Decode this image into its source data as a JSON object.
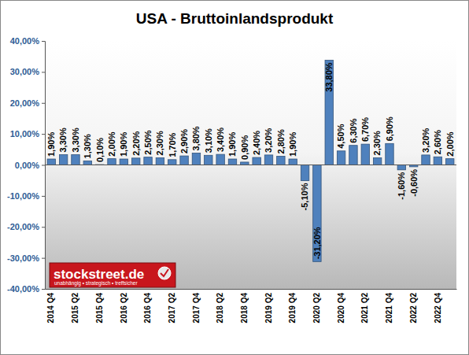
{
  "chart_data": {
    "type": "bar",
    "title": "USA - Bruttoinlandsprodukt",
    "categories": [
      "2014 Q4",
      null,
      "2015 Q2",
      null,
      "2015 Q4",
      null,
      "2016 Q2",
      null,
      "2016 Q4",
      null,
      "2017 Q2",
      null,
      "2017 Q4",
      null,
      "2018 Q2",
      null,
      "2018 Q4",
      null,
      "2019 Q2",
      null,
      "2019 Q4",
      null,
      "2020 Q2",
      null,
      "2020 Q4",
      null,
      "2021 Q2",
      null,
      "2021 Q4",
      null,
      "2022 Q2",
      null,
      "2022 Q4",
      null
    ],
    "values": [
      1.9,
      3.3,
      3.3,
      1.3,
      0.1,
      2.0,
      1.9,
      2.2,
      2.5,
      2.3,
      1.7,
      2.9,
      3.8,
      3.1,
      3.4,
      1.9,
      0.9,
      2.4,
      3.2,
      2.8,
      1.9,
      -5.1,
      -31.2,
      33.8,
      4.5,
      6.3,
      6.7,
      2.3,
      6.9,
      -1.6,
      -0.6,
      3.2,
      2.6,
      2.0
    ],
    "value_labels": [
      "1,90%",
      "3,30%",
      "3,30%",
      "1,30%",
      "0,10%",
      "2,00%",
      "1,90%",
      "2,20%",
      "2,50%",
      "2,30%",
      "1,70%",
      "2,90%",
      "3,80%",
      "3,10%",
      "3,40%",
      "1,90%",
      "0,90%",
      "2,40%",
      "3,20%",
      "2,80%",
      "1,90%",
      "-5,10%",
      "-31,20%",
      "33,80%",
      "4,50%",
      "6,30%",
      "6,70%",
      "2,30%",
      "6,90%",
      "-1,60%",
      "-0,60%",
      "3,20%",
      "2,60%",
      "2,00%"
    ],
    "color": "#4f81bd",
    "ylim": [
      -40,
      40
    ],
    "yticks": [
      {
        "value": -40,
        "label": "-40,00%"
      },
      {
        "value": -30,
        "label": "-30,00%"
      },
      {
        "value": -20,
        "label": "-20,00%"
      },
      {
        "value": -10,
        "label": "-10,00%"
      },
      {
        "value": 0,
        "label": "0,00%"
      },
      {
        "value": 10,
        "label": "10,00%"
      },
      {
        "value": 20,
        "label": "20,00%"
      },
      {
        "value": 30,
        "label": "30,00%"
      },
      {
        "value": 40,
        "label": "40,00%"
      }
    ],
    "grid": false,
    "data_labels": true,
    "annotations": [
      "stockstreet.de",
      "unabhängig • strategisch • treffsicher"
    ]
  }
}
